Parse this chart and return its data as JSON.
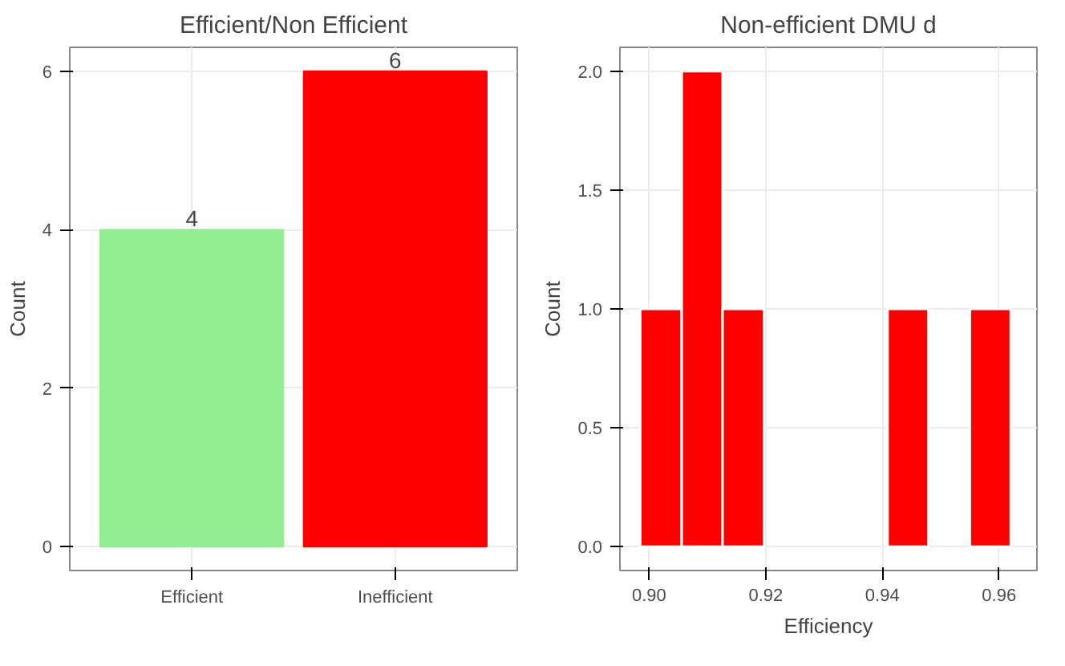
{
  "chart_data": [
    {
      "type": "bar",
      "title": "Efficient/Non Efficient",
      "ylabel": "Count",
      "categories": [
        "Efficient",
        "Inefficient"
      ],
      "values": [
        4,
        6
      ],
      "colors": [
        "#90ee90",
        "#ff0000"
      ],
      "ylim": [
        -0.3,
        6.3
      ],
      "yticks": [
        0,
        2,
        4,
        6
      ],
      "grid": true,
      "data_labels": true
    },
    {
      "type": "histogram",
      "title": "Non-efficient DMU d",
      "xlabel": "Efficiency",
      "ylabel": "Count",
      "bins": [
        0.8985,
        0.9056,
        0.9126,
        0.9197,
        0.9409,
        0.9479,
        0.955,
        0.962
      ],
      "values": [
        1,
        2,
        1,
        0,
        1,
        0,
        1
      ],
      "color": "#ff0000",
      "xlim": [
        0.895,
        0.9665
      ],
      "xticks": [
        {
          "value": 0.9,
          "label": "0.90"
        },
        {
          "value": 0.92,
          "label": "0.92"
        },
        {
          "value": 0.94,
          "label": "0.94"
        },
        {
          "value": 0.96,
          "label": "0.96"
        }
      ],
      "ylim": [
        -0.1,
        2.1
      ],
      "yticks": [
        {
          "value": 0,
          "label": "0.0"
        },
        {
          "value": 0.5,
          "label": "0.5"
        },
        {
          "value": 1,
          "label": "1.0"
        },
        {
          "value": 1.5,
          "label": "1.5"
        },
        {
          "value": 2,
          "label": "2.0"
        }
      ],
      "grid": true
    }
  ]
}
